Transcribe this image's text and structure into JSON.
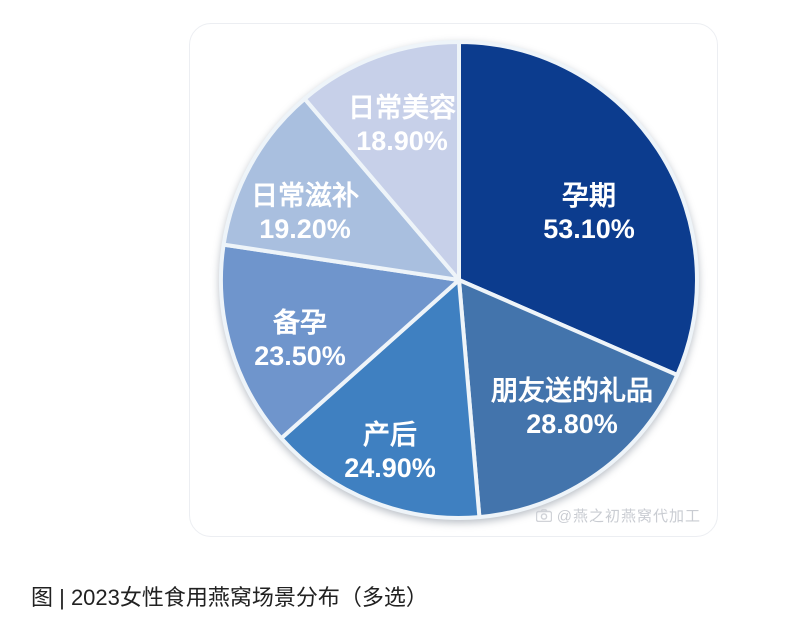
{
  "page": {
    "background": "#ffffff"
  },
  "caption": {
    "text": "图 | 2023女性食用燕窝场景分布（多选）"
  },
  "watermark": {
    "icon": "camera-icon",
    "text": "@燕之初燕窝代加工"
  },
  "chart_data": {
    "type": "pie",
    "title": "2023女性食用燕窝场景分布（多选）",
    "unit": "%",
    "note": "Multi-select survey shares; slice angles are proportional to value / sum (sum = 168.4)",
    "start_angle_deg": 0,
    "direction": "clockwise",
    "separator_color": "#eef4f9",
    "label_text_color": "#ffffff",
    "slices": [
      {
        "id": "pregnancy",
        "label": "孕期",
        "value": 53.1,
        "display": "53.10%",
        "color": "#0c3c8e",
        "label_angle": 62,
        "label_r": 0.62
      },
      {
        "id": "gift-from-friends",
        "label": "朋友送的礼品",
        "value": 28.8,
        "display": "28.80%",
        "color": "#4374ac",
        "label_angle": 138,
        "label_r": 0.71
      },
      {
        "id": "postpartum",
        "label": "产后",
        "value": 24.9,
        "display": "24.90%",
        "color": "#3f80c1",
        "label_angle": 202,
        "label_r": 0.77
      },
      {
        "id": "pregnancy-preparation",
        "label": "备孕",
        "value": 23.5,
        "display": "23.50%",
        "color": "#6f95cc",
        "label_angle": 250,
        "label_r": 0.71
      },
      {
        "id": "daily-nourishment",
        "label": "日常滋补",
        "value": 19.2,
        "display": "19.20%",
        "color": "#a9bfdf",
        "label_angle": 294,
        "label_r": 0.71
      },
      {
        "id": "daily-beauty",
        "label": "日常美容",
        "value": 18.9,
        "display": "18.90%",
        "color": "#c7d0e9",
        "label_angle": 340,
        "label_r": 0.7
      }
    ]
  }
}
